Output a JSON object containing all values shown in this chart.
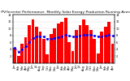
{
  "title": "Solar PV/Inverter Performance  Monthly Solar Energy Production Running Average",
  "bar_values": [
    4.5,
    2.0,
    5.5,
    7.5,
    11.0,
    12.5,
    10.5,
    9.0,
    7.0,
    2.5,
    8.5,
    10.0,
    11.5,
    12.0,
    13.0,
    6.0,
    3.5,
    9.5,
    11.0,
    12.5,
    11.0,
    9.5,
    7.0,
    2.8,
    9.0,
    10.5,
    12.0,
    5.5
  ],
  "running_avg": [
    4.5,
    3.3,
    4.0,
    4.9,
    6.1,
    7.2,
    7.6,
    7.8,
    7.6,
    7.0,
    7.1,
    7.2,
    7.5,
    7.8,
    8.2,
    7.9,
    7.6,
    7.7,
    7.9,
    8.2,
    8.2,
    8.2,
    8.0,
    7.7,
    7.8,
    7.9,
    8.1,
    7.9
  ],
  "bar_color": "#ff0000",
  "avg_color": "#0000ff",
  "background_color": "#ffffff",
  "ylim": [
    0,
    14
  ],
  "ytick_values": [
    2,
    4,
    6,
    8,
    10,
    12,
    14
  ],
  "grid_color": "#cccccc",
  "title_fontsize": 3.2,
  "tick_fontsize": 2.5,
  "month_labels": [
    "Jan",
    "Feb",
    "Mar",
    "Apr",
    "May",
    "Jun",
    "Jul",
    "Aug",
    "Sep",
    "Oct",
    "Nov",
    "Dec",
    "Jan",
    "Feb",
    "Mar",
    "Apr",
    "May",
    "Jun",
    "Jul",
    "Aug",
    "Sep",
    "Oct",
    "Nov",
    "Dec",
    "Jan",
    "Feb",
    "Mar",
    "Apr"
  ]
}
